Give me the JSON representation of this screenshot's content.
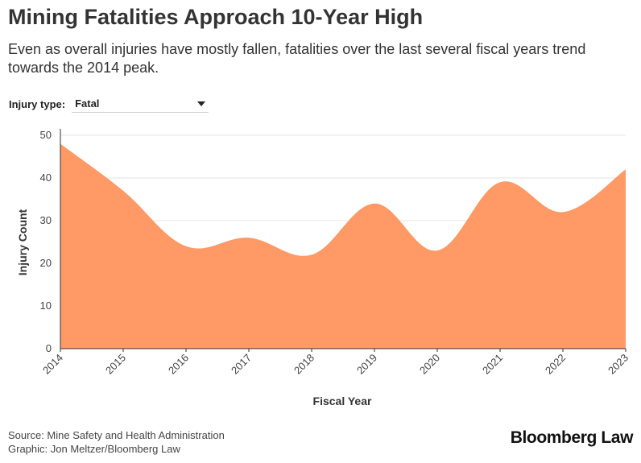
{
  "header": {
    "title": "Mining Fatalities Approach 10-Year High",
    "subtitle": "Even as overall injuries have mostly fallen, fatalities over the last several fiscal years trend towards the 2014 peak."
  },
  "filter": {
    "label": "Injury type:",
    "value": "Fatal"
  },
  "footer": {
    "source": "Source: Mine Safety and Health Administration",
    "credit": "Graphic: Jon Meltzer/Bloomberg Law",
    "logo": "Bloomberg Law"
  },
  "colors": {
    "area": "#ff9966",
    "grid": "#e6e6e6",
    "axis": "#333333"
  },
  "chart_data": {
    "type": "area",
    "x": [
      "2014",
      "2015",
      "2016",
      "2017",
      "2018",
      "2019",
      "2020",
      "2021",
      "2022",
      "2023"
    ],
    "values": [
      48,
      37,
      24,
      26,
      22,
      34,
      23,
      39,
      32,
      42
    ],
    "xlabel": "Fiscal Year",
    "ylabel": "Injury Count",
    "ylim": [
      0,
      50
    ],
    "yticks": [
      "0",
      "10",
      "20",
      "30",
      "40",
      "50"
    ],
    "grid": true
  }
}
